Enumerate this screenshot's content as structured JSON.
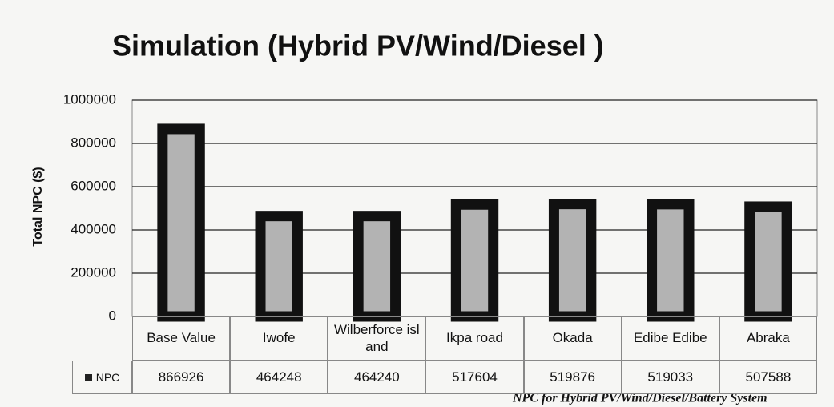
{
  "chart_data": {
    "type": "bar",
    "title": "Simulation (Hybrid PV/Wind/Diesel )",
    "y_label": "Total NPC ($)",
    "caption": "NPC for Hybrid PV/Wind/Diesel/Battery System",
    "categories": [
      "Base Value",
      "Iwofe",
      "Wilberforce island",
      "Ikpa road",
      "Okada",
      "Edibe Edibe",
      "Abraka"
    ],
    "series": [
      {
        "name": "NPC",
        "color": "#b3b3b3",
        "values": [
          866926,
          464248,
          464240,
          517604,
          519876,
          519033,
          507588
        ]
      }
    ],
    "ylim": [
      0,
      1000000
    ],
    "yticks": [
      0,
      200000,
      400000,
      600000,
      800000,
      1000000
    ],
    "grid": true,
    "data_table": true
  }
}
